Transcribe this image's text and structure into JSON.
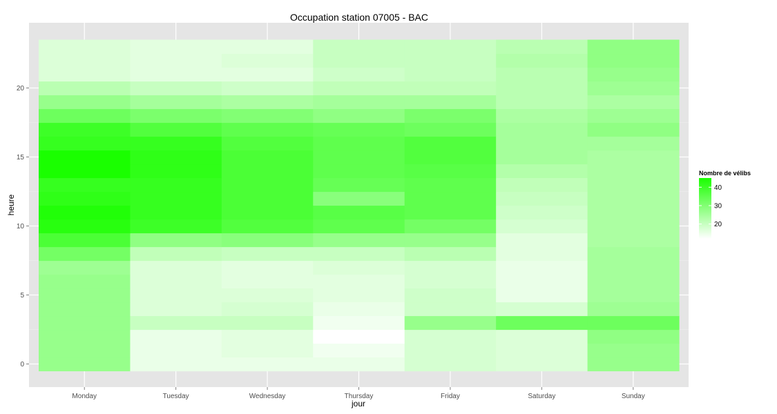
{
  "chart_data": {
    "type": "heatmap",
    "title": "Occupation station 07005 - BAC",
    "xlabel": "jour",
    "ylabel": "heure",
    "categories": [
      "Monday",
      "Tuesday",
      "Wednesday",
      "Thursday",
      "Friday",
      "Saturday",
      "Sunday"
    ],
    "hours": [
      0,
      1,
      2,
      3,
      4,
      5,
      6,
      7,
      8,
      9,
      10,
      11,
      12,
      13,
      14,
      15,
      16,
      17,
      18,
      19,
      20,
      21,
      22,
      23
    ],
    "y_ticks": [
      0,
      5,
      10,
      15,
      20
    ],
    "ylim": [
      -0.5,
      23.5
    ],
    "grid": true,
    "values": [
      [
        27,
        15,
        15,
        15,
        18,
        17,
        27
      ],
      [
        27,
        15,
        16,
        14,
        18,
        17,
        27
      ],
      [
        27,
        15,
        16,
        12,
        18,
        17,
        28
      ],
      [
        27,
        20,
        20,
        14,
        27,
        33,
        33
      ],
      [
        27,
        17,
        18,
        15,
        19,
        18,
        26
      ],
      [
        27,
        17,
        17,
        16,
        19,
        15,
        25
      ],
      [
        27,
        17,
        16,
        16,
        18,
        15,
        25
      ],
      [
        26,
        17,
        16,
        17,
        18,
        15,
        25
      ],
      [
        32,
        21,
        20,
        20,
        22,
        16,
        25
      ],
      [
        38,
        28,
        29,
        27,
        27,
        16,
        24
      ],
      [
        43,
        40,
        37,
        35,
        32,
        18,
        24
      ],
      [
        44,
        41,
        38,
        36,
        35,
        19,
        24
      ],
      [
        42,
        41,
        38,
        29,
        35,
        20,
        24
      ],
      [
        41,
        41,
        38,
        34,
        35,
        21,
        24
      ],
      [
        45,
        42,
        38,
        35,
        36,
        23,
        24
      ],
      [
        45,
        42,
        38,
        35,
        37,
        25,
        24
      ],
      [
        41,
        41,
        37,
        35,
        37,
        25,
        25
      ],
      [
        40,
        37,
        35,
        34,
        33,
        25,
        28
      ],
      [
        33,
        31,
        30,
        28,
        31,
        24,
        26
      ],
      [
        27,
        25,
        24,
        25,
        25,
        22,
        24
      ],
      [
        22,
        20,
        19,
        21,
        21,
        22,
        26
      ],
      [
        17,
        16,
        16,
        19,
        20,
        22,
        27
      ],
      [
        17,
        16,
        17,
        20,
        20,
        23,
        28
      ],
      [
        17,
        16,
        16,
        20,
        20,
        22,
        28
      ]
    ],
    "legend": {
      "title": "Nombre de vélibs",
      "ticks": [
        20,
        30,
        40
      ],
      "range": [
        12,
        45
      ],
      "low_color": "#ffffff",
      "high_color": "#1aff00",
      "placement": "right"
    }
  }
}
